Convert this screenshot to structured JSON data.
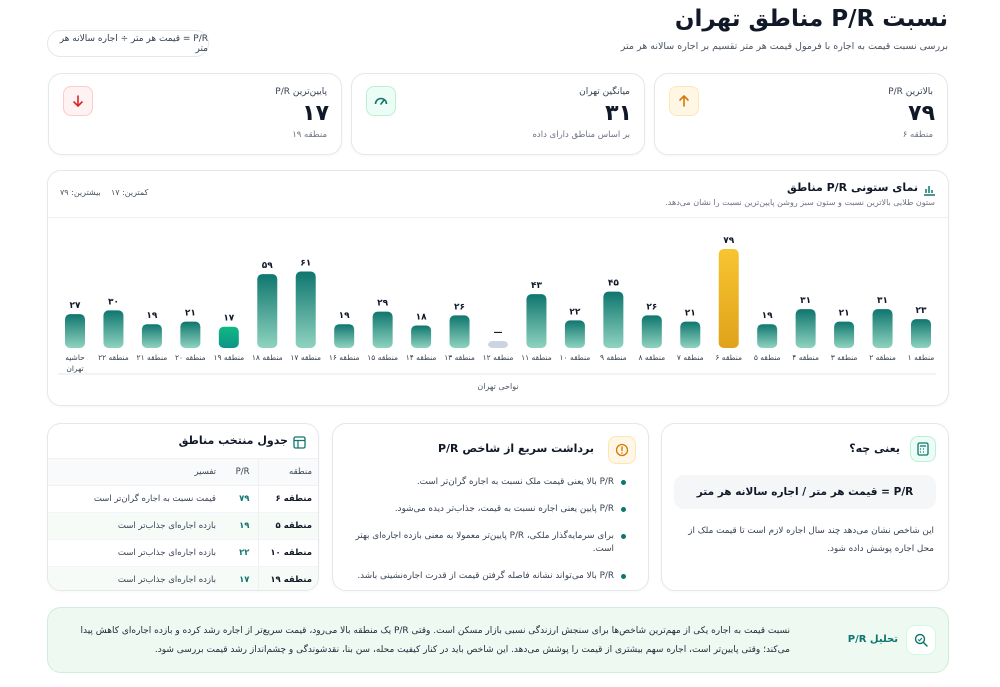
{
  "header": {
    "title": "نسبت P/R مناطق تهران",
    "subtitle": "بررسی نسبت قیمت به اجاره با فرمول قیمت هر متر تقسیم بر اجاره سالانه هر متر",
    "formula_pill": "P/R = قیمت هر متر ÷ اجاره سالانه هر متر"
  },
  "stats": {
    "max": {
      "label": "بالاترین P/R",
      "value": "۷۹",
      "note": "منطقه ۶",
      "icon": "arrow-up-icon",
      "color": "#f59e0b"
    },
    "avg": {
      "label": "میانگین تهران",
      "value": "۳۱",
      "note": "بر اساس مناطق دارای داده",
      "icon": "gauge-icon",
      "color": "#10b981"
    },
    "min": {
      "label": "پایین‌ترین P/R",
      "value": "۱۷",
      "note": "منطقه ۱۹",
      "icon": "arrow-down-icon",
      "color": "#ef4444"
    }
  },
  "chart_card": {
    "title": "نمای ستونی P/R مناطق",
    "subtitle": "ستون طلایی بالاترین نسبت و ستون سبز روشن پایین‌ترین نسبت را نشان می‌دهد.",
    "min_label": "کمترین: ۱۷",
    "max_label": "بیشترین: ۷۹"
  },
  "chart_data": {
    "type": "bar",
    "xlabel": "نواحی تهران",
    "categories": [
      "منطقه ۱",
      "منطقه ۲",
      "منطقه ۳",
      "منطقه ۴",
      "منطقه ۵",
      "منطقه ۶",
      "منطقه ۷",
      "منطقه ۸",
      "منطقه ۹",
      "منطقه ۱۰",
      "منطقه ۱۱",
      "منطقه ۱۲",
      "منطقه ۱۳",
      "منطقه ۱۴",
      "منطقه ۱۵",
      "منطقه ۱۶",
      "منطقه ۱۷",
      "منطقه ۱۸",
      "منطقه ۱۹",
      "منطقه ۲۰",
      "منطقه ۲۱",
      "منطقه ۲۲",
      "حاشیه تهران"
    ],
    "values": [
      23,
      31,
      21,
      31,
      19,
      79,
      21,
      26,
      45,
      22,
      43,
      null,
      26,
      18,
      29,
      19,
      61,
      59,
      17,
      21,
      19,
      30,
      27
    ],
    "value_labels": [
      "۲۳",
      "۳۱",
      "۲۱",
      "۳۱",
      "۱۹",
      "۷۹",
      "۲۱",
      "۲۶",
      "۴۵",
      "۲۲",
      "۴۳",
      "—",
      "۲۶",
      "۱۸",
      "۲۹",
      "۱۹",
      "۶۱",
      "۵۹",
      "۱۷",
      "۲۱",
      "۱۹",
      "۳۰",
      "۲۷"
    ],
    "ylim": [
      0,
      79
    ],
    "highlight_max": "منطقه ۶",
    "highlight_min": "منطقه ۱۹",
    "colors": {
      "default": "#0f766e",
      "max": "#f2b21f",
      "min": "#10b981",
      "missing": "#cbd5e1"
    }
  },
  "what_is": {
    "title": "یعنی چه؟",
    "formula": "P/R = قیمت هر متر / اجاره سالانه هر متر",
    "desc": "این شاخص نشان می‌دهد چند سال اجاره لازم است تا قیمت ملک از محل اجاره پوشش داده شود."
  },
  "quick": {
    "title": "برداشت سریع از شاخص P/R",
    "items": [
      "P/R بالا یعنی قیمت ملک نسبت به اجاره گران‌تر است.",
      "P/R پایین یعنی اجاره نسبت به قیمت، جذاب‌تر دیده می‌شود.",
      "برای سرمایه‌گذار ملکی، P/R پایین‌تر معمولا به معنی بازده اجاره‌ای بهتر است.",
      "P/R بالا می‌تواند نشانه فاصله گرفتن قیمت از قدرت اجاره‌نشینی باشد."
    ]
  },
  "table": {
    "title": "جدول منتخب مناطق",
    "headers": [
      "منطقه",
      "P/R",
      "تفسیر"
    ],
    "rows": [
      {
        "region": "منطقه ۶",
        "pr": "۷۹",
        "note": "قیمت نسبت به اجاره گران‌تر است"
      },
      {
        "region": "منطقه ۵",
        "pr": "۱۹",
        "note": "بازده اجاره‌ای جذاب‌تر است"
      },
      {
        "region": "منطقه ۱۰",
        "pr": "۲۲",
        "note": "بازده اجاره‌ای جذاب‌تر است"
      },
      {
        "region": "منطقه ۱۹",
        "pr": "۱۷",
        "note": "بازده اجاره‌ای جذاب‌تر است"
      }
    ]
  },
  "analysis": {
    "title": "تحلیل P/R",
    "text": "نسبت قیمت به اجاره یکی از مهم‌ترین شاخص‌ها برای سنجش ارزندگی نسبی بازار مسکن است. وقتی P/R یک منطقه بالا می‌رود، قیمت سریع‌تر از اجاره رشد کرده و بازده اجاره‌ای کاهش پیدا می‌کند؛ وقتی پایین‌تر است، اجاره سهم بیشتری از قیمت را پوشش می‌دهد. این شاخص باید در کنار کیفیت محله، سن بنا، نقدشوندگی و چشم‌انداز رشد قیمت بررسی شود."
  }
}
